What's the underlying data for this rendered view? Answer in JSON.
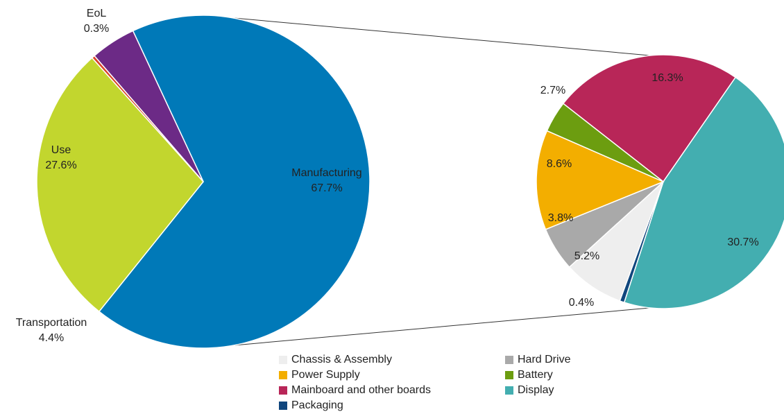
{
  "chart_data": [
    {
      "type": "pie",
      "categories": [
        "Manufacturing",
        "Use",
        "EoL",
        "Transportation"
      ],
      "values": [
        67.7,
        27.6,
        0.3,
        4.4
      ],
      "value_labels": [
        "67.7%",
        "27.6%",
        "0.3%",
        "4.4%"
      ],
      "colors": [
        "#0079b8",
        "#c2d62e",
        "#d9442a",
        "#6c2a86"
      ],
      "title": ""
    },
    {
      "type": "pie",
      "categories": [
        "Mainboard and other boards",
        "Display",
        "Packaging",
        "Chassis & Assembly",
        "Hard Drive",
        "Power Supply",
        "Battery"
      ],
      "values": [
        16.3,
        30.7,
        0.4,
        5.2,
        3.8,
        8.6,
        2.7
      ],
      "value_labels": [
        "16.3%",
        "30.7%",
        "0.4%",
        "5.2%",
        "3.8%",
        "8.6%",
        "2.7%"
      ],
      "colors": [
        "#b82658",
        "#43aeb0",
        "#10467d",
        "#eeeeee",
        "#a9a9a9",
        "#f3ae00",
        "#6c9d10"
      ],
      "legend": [
        "Chassis & Assembly",
        "Hard Drive",
        "Power Supply",
        "Battery",
        "Mainboard and other boards",
        "Display",
        "Packaging"
      ],
      "legend_placement": "bottom",
      "breakout_of": "Manufacturing",
      "title": ""
    }
  ]
}
